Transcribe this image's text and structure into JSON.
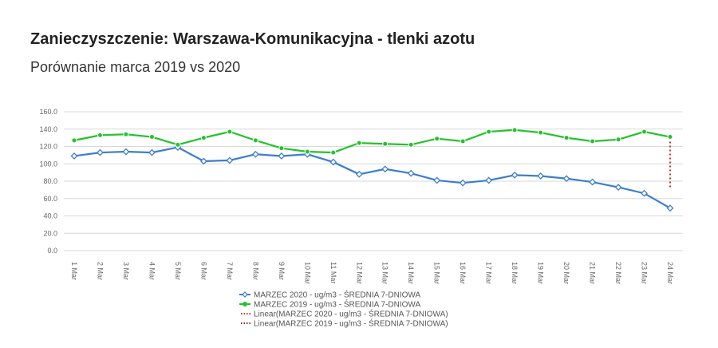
{
  "title": "Zanieczyszczenie: Warszawa-Komunikacyjna - tlenki azotu",
  "subtitle": "Porównanie marca 2019 vs 2020",
  "chart_data": {
    "type": "line",
    "categories": [
      "1 Mar",
      "2 Mar",
      "3 Mar",
      "4 Mar",
      "5 Mar",
      "6 Mar",
      "7 Mar",
      "8 Mar",
      "9 Mar",
      "10 Mar",
      "11 Mar",
      "12 Mar",
      "13 Mar",
      "14 Mar",
      "15 Mar",
      "16 Mar",
      "17 Mar",
      "18 Mar",
      "19 Mar",
      "20 Mar",
      "21 Mar",
      "22 Mar",
      "23 Mar",
      "24 Mar"
    ],
    "ylim": [
      0,
      160
    ],
    "yticks": [
      "0.0",
      "20.0",
      "40.0",
      "60.0",
      "80.0",
      "100.0",
      "120.0",
      "140.0",
      "160.0"
    ],
    "grid": true,
    "legend_position": "bottom",
    "series": [
      {
        "name": "MARZEC 2020 - ug/m3 - ŚREDNIA 7-DNIOWA",
        "color": "#3c7dd0",
        "marker": "diamond",
        "values": [
          109,
          113,
          114,
          113,
          119,
          103,
          104,
          111,
          109,
          111,
          102,
          88,
          94,
          89,
          81,
          78,
          81,
          87,
          86,
          83,
          79,
          73,
          66,
          49
        ]
      },
      {
        "name": "MARZEC 2019 - ug/m3 - ŚREDNIA 7-DNIOWA",
        "color": "#22c32a",
        "marker": "circle",
        "values": [
          127,
          133,
          134,
          131,
          122,
          130,
          137,
          127,
          118,
          114,
          113,
          124,
          123,
          122,
          129,
          126,
          137,
          139,
          136,
          130,
          126,
          128,
          137,
          131
        ]
      }
    ],
    "trendlines": [
      {
        "name": "Linear(MARZEC 2020 - ug/m3 - ŚREDNIA 7-DNIOWA)",
        "color": "#c0392b",
        "style": "dotted"
      },
      {
        "name": "Linear(MARZEC 2019 - ug/m3 - ŚREDNIA 7-DNIOWA)",
        "color": "#8b2a2a",
        "style": "dotted"
      }
    ]
  }
}
